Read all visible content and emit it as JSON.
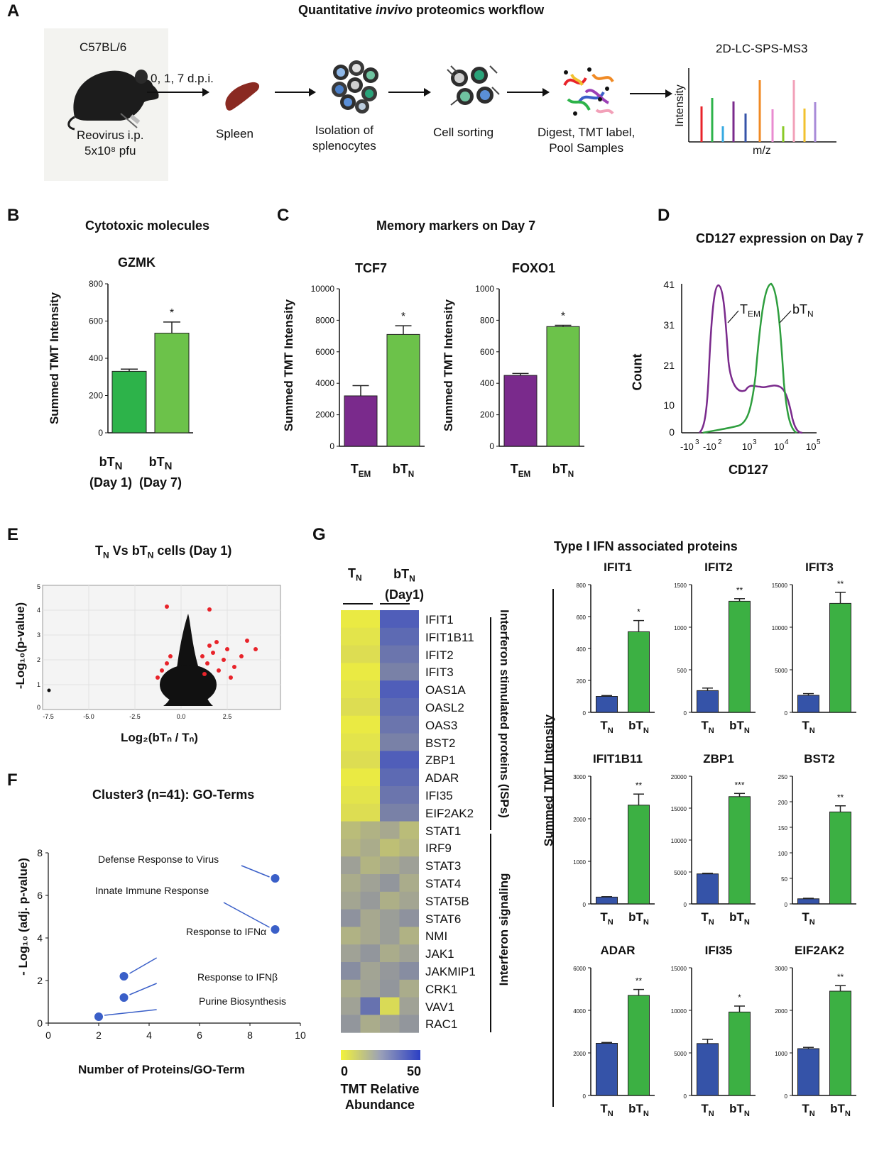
{
  "panelA": {
    "letter": "A",
    "title_pre": "Quantitative ",
    "title_em": "invivo",
    "title_post": " proteomics workflow",
    "mouse_label": "C57BL/6",
    "infection_line1": "Reovirus i.p.",
    "infection_line2": "5x10⁸ pfu",
    "timepoints": "0, 1, 7 d.p.i.",
    "step_spleen": "Spleen",
    "step_isolation_1": "Isolation of",
    "step_isolation_2": "splenocytes",
    "step_sorting": "Cell sorting",
    "step_digest_1": "Digest, TMT label,",
    "step_digest_2": "Pool Samples",
    "ms_title": "2D-LC-SPS-MS3",
    "ms_ylabel": "Intensity",
    "ms_xlabel": "m/z"
  },
  "panelB": {
    "letter": "B",
    "title": "Cytotoxic molecules",
    "gene": "GZMK",
    "ylabel": "Summed TMT Intensity",
    "chart_data": {
      "type": "bar",
      "categories": [
        "bTN (Day 1)",
        "bTN (Day 7)"
      ],
      "values": [
        330,
        535
      ],
      "errors": [
        12,
        60
      ],
      "ylim": [
        0,
        800
      ],
      "yticks": [
        0,
        200,
        400,
        600,
        800
      ],
      "significance": [
        "",
        "*"
      ]
    },
    "xlabel_1a": "bT",
    "xlabel_1b": "(Day 1)",
    "xlabel_2a": "bT",
    "xlabel_2b": "(Day 7)",
    "sub_n": "N"
  },
  "panelC": {
    "letter": "C",
    "title": "Memory markers on Day 7",
    "ylabel": "Summed TMT Intensity",
    "charts": [
      {
        "type": "bar",
        "gene": "TCF7",
        "categories": [
          "TEM",
          "bTN"
        ],
        "values": [
          3200,
          7100
        ],
        "errors": [
          650,
          550
        ],
        "ylim": [
          0,
          10000
        ],
        "yticks": [
          0,
          2000,
          4000,
          6000,
          8000,
          10000
        ],
        "significance": [
          "",
          "*"
        ]
      },
      {
        "type": "bar",
        "gene": "FOXO1",
        "categories": [
          "TEM",
          "bTN"
        ],
        "values": [
          450,
          760
        ],
        "errors": [
          12,
          8
        ],
        "ylim": [
          0,
          1000
        ],
        "yticks": [
          0,
          200,
          400,
          600,
          800,
          1000
        ],
        "significance": [
          "",
          "*"
        ]
      }
    ]
  },
  "panelD": {
    "letter": "D",
    "title": "CD127 expression on Day 7",
    "ylabel": "Count",
    "xlabel": "CD127",
    "yticks": [
      "41",
      "31",
      "21",
      "10",
      "0"
    ],
    "label_tem": "T",
    "label_btn": "bT",
    "sub_em": "EM",
    "sub_n": "N"
  },
  "panelE": {
    "letter": "E",
    "title_pre": "T",
    "title_mid": " Vs bT",
    "title_post": " cells (Day 1)",
    "ylabel": "-Log₁₀(p-value)",
    "xlabel": "Log₂(bTₙ / Tₙ)",
    "xticks": [
      "-7.5",
      "-5.0",
      "-2.5",
      "0.0",
      "2.5"
    ],
    "yticks": [
      "5",
      "4",
      "3",
      "2",
      "1",
      "0"
    ]
  },
  "panelF": {
    "letter": "F",
    "title": "Cluster3 (n=41): GO-Terms",
    "ylabel": "- Log₁₀ (adj. p-value)",
    "xlabel": "Number of Proteins/GO-Term",
    "chart_data": {
      "type": "scatter",
      "points": [
        {
          "label": "Defense Response to Virus",
          "x": 9,
          "y": 6.8
        },
        {
          "label": "Innate Immune Response",
          "x": 9,
          "y": 4.4
        },
        {
          "label": "Response to IFNα",
          "x": 3,
          "y": 2.2
        },
        {
          "label": "Response to IFNβ",
          "x": 3,
          "y": 1.2
        },
        {
          "label": "Purine Biosynthesis",
          "x": 2,
          "y": 0.3
        }
      ],
      "xlim": [
        0,
        10
      ],
      "ylim": [
        0,
        8
      ],
      "xticks": [
        0,
        2,
        4,
        6,
        8,
        10
      ],
      "yticks": [
        0,
        2,
        4,
        6,
        8
      ]
    }
  },
  "panelG": {
    "letter": "G",
    "heat_col1": "T",
    "heat_col2a": "bT",
    "heat_col2b": "(Day1)",
    "genes": [
      "IFIT1",
      "IFIT1B11",
      "IFIT2",
      "IFIT3",
      "OAS1A",
      "OASL2",
      "OAS3",
      "BST2",
      "ZBP1",
      "ADAR",
      "IFI35",
      "EIF2AK2",
      "STAT1",
      "IRF9",
      "STAT3",
      "STAT4",
      "STAT5B",
      "STAT6",
      "NMI",
      "JAK1",
      "JAKMIP1",
      "CRK1",
      "VAV1",
      "RAC1"
    ],
    "group_isp": "Interferon stimulated proteins (ISPs)",
    "group_signal": "Interferon signaling",
    "scale_min": "0",
    "scale_max": "50",
    "scale_label_1": "TMT Relative",
    "scale_label_2": "Abundance",
    "bars_title": "Type I IFN associated proteins",
    "ylabel": "Summed TMT Intensity",
    "chart_data": [
      {
        "type": "bar",
        "gene": "IFIT1",
        "categories": [
          "TN",
          "bTN"
        ],
        "values": [
          100,
          505
        ],
        "errors": [
          5,
          70
        ],
        "ylim": [
          0,
          800
        ],
        "yticks": [
          0,
          200,
          400,
          600,
          800
        ],
        "significance": [
          "",
          "*"
        ]
      },
      {
        "type": "bar",
        "gene": "IFIT2",
        "categories": [
          "TN",
          "bTN"
        ],
        "values": [
          255,
          1305
        ],
        "errors": [
          30,
          30
        ],
        "ylim": [
          0,
          1500
        ],
        "yticks": [
          0,
          500,
          1000,
          1500
        ],
        "significance": [
          "",
          "**"
        ]
      },
      {
        "type": "bar",
        "gene": "IFIT3",
        "categories": [
          "TN",
          " "
        ],
        "values": [
          2000,
          12800
        ],
        "errors": [
          200,
          1300
        ],
        "ylim": [
          0,
          15000
        ],
        "yticks": [
          0,
          5000,
          10000,
          15000
        ],
        "significance": [
          "",
          "**"
        ]
      },
      {
        "type": "bar",
        "gene": "IFIT1B11",
        "categories": [
          "TN",
          "bTN"
        ],
        "values": [
          160,
          2320
        ],
        "errors": [
          10,
          260
        ],
        "ylim": [
          0,
          3000
        ],
        "yticks": [
          0,
          1000,
          2000,
          3000
        ],
        "significance": [
          "",
          "**"
        ]
      },
      {
        "type": "bar",
        "gene": "ZBP1",
        "categories": [
          "TN",
          "bTN"
        ],
        "values": [
          4700,
          16800
        ],
        "errors": [
          100,
          500
        ],
        "ylim": [
          0,
          20000
        ],
        "yticks": [
          0,
          5000,
          10000,
          15000,
          20000
        ],
        "significance": [
          "",
          "***"
        ]
      },
      {
        "type": "bar",
        "gene": "BST2",
        "categories": [
          "TN",
          " "
        ],
        "values": [
          10,
          180
        ],
        "errors": [
          1,
          12
        ],
        "ylim": [
          0,
          250
        ],
        "yticks": [
          0,
          50,
          100,
          150,
          200,
          250
        ],
        "significance": [
          "",
          "**"
        ]
      },
      {
        "type": "bar",
        "gene": "ADAR",
        "categories": [
          "TN",
          "bTN"
        ],
        "values": [
          2450,
          4700
        ],
        "errors": [
          40,
          280
        ],
        "ylim": [
          0,
          6000
        ],
        "yticks": [
          0,
          2000,
          4000,
          6000
        ],
        "significance": [
          "",
          "**"
        ]
      },
      {
        "type": "bar",
        "gene": "IFI35",
        "categories": [
          "TN",
          "bTN"
        ],
        "values": [
          6100,
          9800
        ],
        "errors": [
          500,
          700
        ],
        "ylim": [
          0,
          15000
        ],
        "yticks": [
          0,
          5000,
          10000,
          15000
        ],
        "significance": [
          "",
          "*"
        ]
      },
      {
        "type": "bar",
        "gene": "EIF2AK2",
        "categories": [
          "TN",
          "bTN"
        ],
        "values": [
          1100,
          2450
        ],
        "errors": [
          30,
          130
        ],
        "ylim": [
          0,
          3000
        ],
        "yticks": [
          0,
          1000,
          2000,
          3000
        ],
        "significance": [
          "",
          "**"
        ]
      }
    ]
  },
  "colors": {
    "green_dark": "#2db34a",
    "green_light": "#6cc24a",
    "purple": "#7a2a8c",
    "blue": "#3553a8",
    "bar_green": "#3cb043",
    "red": "#e8232a",
    "fig_blue": "#3a5fc8"
  }
}
